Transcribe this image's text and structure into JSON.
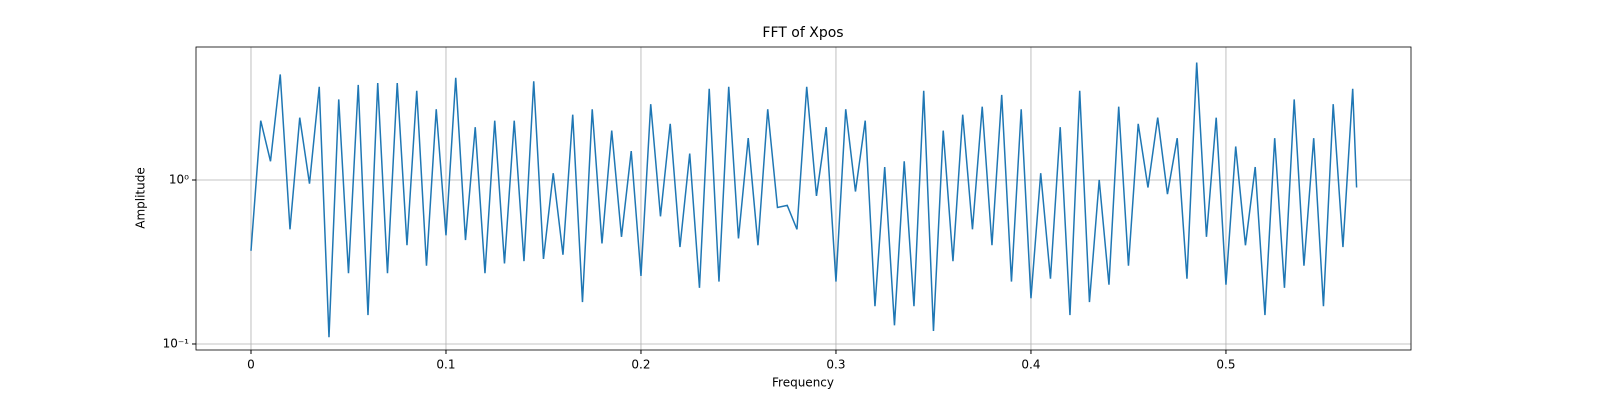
{
  "chart_data": {
    "type": "line",
    "title": "FFT of Xpos",
    "x_label": "Frequency",
    "y_label": "Amplitude",
    "log_y": true,
    "grid": true,
    "xlim": [
      -0.0282,
      0.5949
    ],
    "ylim": [
      0.0919,
      6.47
    ],
    "xticks": [
      0.0,
      0.1,
      0.2,
      0.3,
      0.4,
      0.5
    ],
    "yticks": [
      {
        "value": 0.1,
        "label": "10⁻¹"
      },
      {
        "value": 1,
        "label": "10⁰"
      }
    ],
    "x": [
      0.0,
      0.005,
      0.01,
      0.015,
      0.02,
      0.025,
      0.03,
      0.035,
      0.04,
      0.045,
      0.05,
      0.055,
      0.06,
      0.065,
      0.07,
      0.075,
      0.08,
      0.085,
      0.09,
      0.095,
      0.1,
      0.105,
      0.11,
      0.115,
      0.12,
      0.125,
      0.13,
      0.135,
      0.14,
      0.145,
      0.15,
      0.155,
      0.16,
      0.165,
      0.17,
      0.175,
      0.18,
      0.185,
      0.19,
      0.195,
      0.2,
      0.205,
      0.21,
      0.215,
      0.22,
      0.225,
      0.23,
      0.235,
      0.24,
      0.245,
      0.25,
      0.255,
      0.26,
      0.265,
      0.27,
      0.275,
      0.28,
      0.285,
      0.29,
      0.295,
      0.3,
      0.305,
      0.31,
      0.315,
      0.32,
      0.325,
      0.33,
      0.335,
      0.34,
      0.345,
      0.35,
      0.355,
      0.36,
      0.365,
      0.37,
      0.375,
      0.38,
      0.385,
      0.39,
      0.395,
      0.4,
      0.405,
      0.41,
      0.415,
      0.42,
      0.425,
      0.43,
      0.435,
      0.44,
      0.445,
      0.45,
      0.455,
      0.46,
      0.465,
      0.47,
      0.475,
      0.48,
      0.485,
      0.49,
      0.495,
      0.5,
      0.505,
      0.51,
      0.515,
      0.52,
      0.525,
      0.53,
      0.535,
      0.54,
      0.545,
      0.55,
      0.555,
      0.56,
      0.565,
      0.567
    ],
    "series": [
      {
        "name": "Xpos",
        "color": "#1f77b4",
        "values": [
          0.37,
          2.3,
          1.3,
          4.4,
          0.5,
          2.4,
          0.95,
          3.7,
          0.11,
          3.1,
          0.27,
          3.8,
          0.15,
          3.9,
          0.27,
          3.9,
          0.4,
          3.5,
          0.3,
          2.7,
          0.46,
          4.2,
          0.43,
          2.1,
          0.27,
          2.3,
          0.31,
          2.3,
          0.32,
          4.0,
          0.33,
          1.1,
          0.35,
          2.5,
          0.18,
          2.7,
          0.41,
          2.0,
          0.45,
          1.5,
          0.26,
          2.9,
          0.6,
          2.2,
          0.39,
          1.45,
          0.22,
          3.6,
          0.24,
          3.7,
          0.44,
          1.8,
          0.4,
          2.7,
          0.68,
          0.7,
          0.5,
          3.7,
          0.8,
          2.1,
          0.24,
          2.7,
          0.85,
          2.3,
          0.17,
          1.2,
          0.13,
          1.3,
          0.17,
          3.5,
          0.12,
          2.0,
          0.32,
          2.5,
          0.5,
          2.8,
          0.4,
          3.3,
          0.24,
          2.7,
          0.19,
          1.1,
          0.25,
          2.1,
          0.15,
          3.5,
          0.18,
          1.0,
          0.23,
          2.8,
          0.3,
          2.2,
          0.9,
          2.4,
          0.82,
          1.8,
          0.25,
          5.2,
          0.45,
          2.4,
          0.23,
          1.6,
          0.4,
          1.2,
          0.15,
          1.8,
          0.22,
          3.1,
          0.3,
          1.8,
          0.17,
          2.9,
          0.39,
          3.6,
          0.9
        ]
      }
    ]
  }
}
